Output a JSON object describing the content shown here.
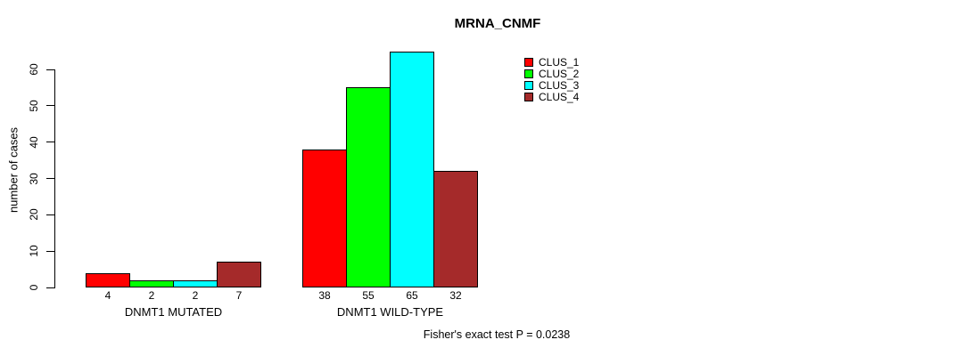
{
  "title": "MRNA_CNMF",
  "footer": "Fisher's exact test P = 0.0238",
  "legend": [
    {
      "label": "CLUS_1",
      "color": "#FF0000"
    },
    {
      "label": "CLUS_2",
      "color": "#00FF00"
    },
    {
      "label": "CLUS_3",
      "color": "#00FFFF"
    },
    {
      "label": "CLUS_4",
      "color": "#A52A2A"
    }
  ],
  "chart_data": {
    "type": "bar",
    "title": "MRNA_CNMF",
    "xlabel": "",
    "ylabel": "number of cases",
    "ylim": [
      0,
      60
    ],
    "y_ticks": [
      0,
      10,
      20,
      30,
      40,
      50,
      60
    ],
    "grid": false,
    "legend_position": "top-right",
    "bar_value_labels": true,
    "categories": [
      "DNMT1 MUTATED",
      "DNMT1 WILD-TYPE"
    ],
    "series": [
      {
        "name": "CLUS_1",
        "color": "#FF0000",
        "values": [
          4,
          38
        ]
      },
      {
        "name": "CLUS_2",
        "color": "#00FF00",
        "values": [
          2,
          55
        ]
      },
      {
        "name": "CLUS_3",
        "color": "#00FFFF",
        "values": [
          2,
          65
        ]
      },
      {
        "name": "CLUS_4",
        "color": "#A52A2A",
        "values": [
          7,
          32
        ]
      }
    ],
    "annotation": "Fisher's exact test P = 0.0238"
  }
}
